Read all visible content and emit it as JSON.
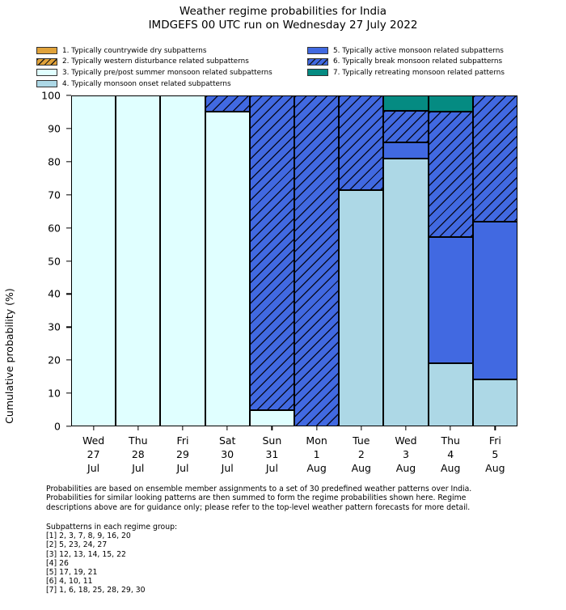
{
  "header": {
    "title": "Weather regime probabilities for India",
    "subtitle": "IMDGEFS 00 UTC run on Wednesday 27 July 2022"
  },
  "colors": {
    "regime_dry_orange": "#E0A23A",
    "regime_premonsoon_lightcyan": "#E0FFFF",
    "regime_onset_lightblue": "#ADD8E6",
    "regime_active_royalblue": "#4169E1",
    "regime_retreating_teal": "#058B82",
    "segment_edge": "#000000"
  },
  "chart_data": {
    "type": "bar",
    "stacked": true,
    "title": "Weather regime probabilities for India",
    "subtitle": "IMDGEFS 00 UTC run on Wednesday 27 July 2022",
    "xlabel": "",
    "ylabel": "Cumulative probability (%)",
    "ylim": [
      0,
      100
    ],
    "yticks": [
      0,
      10,
      20,
      30,
      40,
      50,
      60,
      70,
      80,
      90,
      100
    ],
    "grid": false,
    "legend_position": "upper-left-two-columns",
    "categories": [
      "Wed\n27\nJul",
      "Thu\n28\nJul",
      "Fri\n29\nJul",
      "Sat\n30\nJul",
      "Sun\n31\nJul",
      "Mon\n1\nAug",
      "Tue\n2\nAug",
      "Wed\n3\nAug",
      "Thu\n4\nAug",
      "Fri\n5\nAug"
    ],
    "series": [
      {
        "name": "1. Typically countrywide dry subpatterns",
        "color": "#E0A23A",
        "hatched": false,
        "values": [
          0,
          0,
          0,
          0,
          0,
          0,
          0,
          0,
          0,
          0
        ]
      },
      {
        "name": "2. Typically western disturbance related subpatterns",
        "color": "#E0A23A",
        "hatched": true,
        "values": [
          0,
          0,
          0,
          0,
          0,
          0,
          0,
          0,
          0,
          0
        ]
      },
      {
        "name": "3. Typically pre/post summer monsoon related subpatterns",
        "color": "#E0FFFF",
        "hatched": false,
        "values": [
          100,
          100,
          100,
          95.2,
          4.8,
          0,
          0,
          0,
          0,
          0
        ]
      },
      {
        "name": "4. Typically monsoon onset related subpatterns",
        "color": "#ADD8E6",
        "hatched": false,
        "values": [
          0,
          0,
          0,
          0,
          0,
          0,
          71.4,
          81.0,
          19.0,
          14.3
        ]
      },
      {
        "name": "5. Typically active monsoon related subpatterns",
        "color": "#4169E1",
        "hatched": false,
        "values": [
          0,
          0,
          0,
          0,
          0,
          0,
          0,
          4.8,
          38.1,
          47.6
        ]
      },
      {
        "name": "6. Typically break monsoon related subpatterns",
        "color": "#4169E1",
        "hatched": true,
        "values": [
          0,
          0,
          0,
          4.8,
          95.2,
          100,
          28.6,
          9.5,
          38.1,
          38.1
        ]
      },
      {
        "name": "7. Typically retreating monsoon related patterns",
        "color": "#058B82",
        "hatched": false,
        "values": [
          0,
          0,
          0,
          0,
          0,
          0,
          0,
          4.8,
          4.8,
          0
        ]
      }
    ]
  },
  "footnote": "Probabilities are based on ensemble member assignments to a set of 30 predefined weather patterns over India.\nProbabilities for similar looking patterns are then summed to form the regime probabilities shown here. Regime\ndescriptions above are for guidance only; please refer to the top-level weather pattern forecasts for more detail.",
  "subpatterns": {
    "title": "Subpatterns in each regime group:",
    "items": [
      "[1] 2, 3, 7, 8, 9, 16, 20",
      "[2] 5, 23, 24, 27",
      "[3] 12, 13, 14, 15, 22",
      "[4] 26",
      "[5] 17, 19, 21",
      "[6] 4, 10, 11",
      "[7] 1, 6, 18, 25, 28, 29, 30"
    ]
  }
}
